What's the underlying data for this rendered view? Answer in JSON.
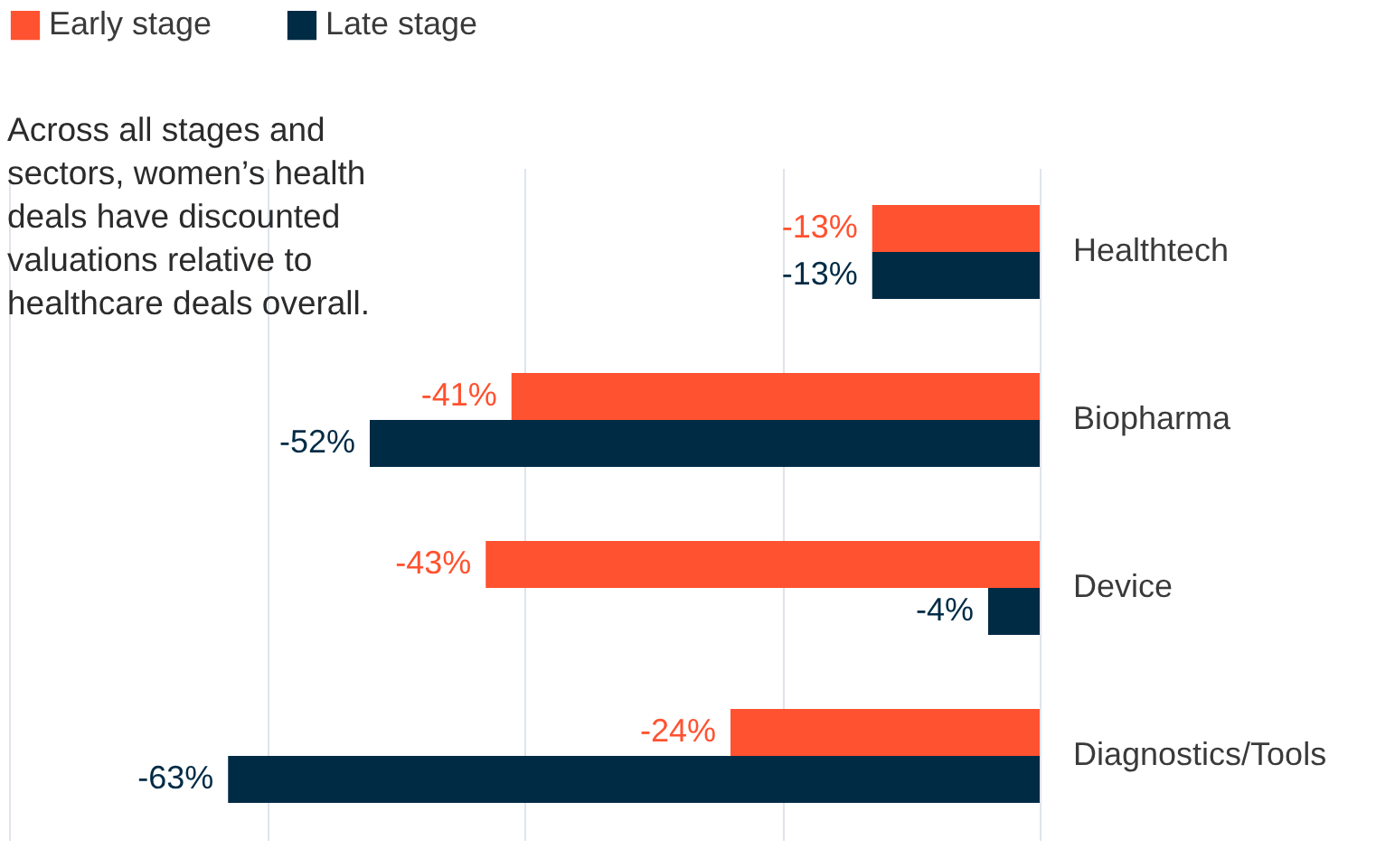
{
  "chart_data": {
    "type": "bar",
    "orientation": "horizontal",
    "categories": [
      "Healthtech",
      "Biopharma",
      "Device",
      "Diagnostics/Tools"
    ],
    "series": [
      {
        "name": "Early stage",
        "color": "#ff5230",
        "values": [
          -13,
          -41,
          -43,
          -24
        ],
        "value_labels": [
          "-13%",
          "-41%",
          "-43%",
          "-24%"
        ]
      },
      {
        "name": "Late stage",
        "color": "#002b45",
        "values": [
          -13,
          -52,
          -4,
          -63
        ],
        "value_labels": [
          "-13%",
          "-52%",
          "-4%",
          "-63%"
        ]
      }
    ],
    "xlim": [
      -80,
      0
    ],
    "xticks": [
      -80,
      -60,
      -40,
      -20,
      0
    ],
    "tick_labels": "y",
    "grid": "x",
    "legend": "top left",
    "annotations": [
      "Across all stages and sectors, women’s health deals have discounted valuations relative to healthcare deals overall."
    ]
  }
}
